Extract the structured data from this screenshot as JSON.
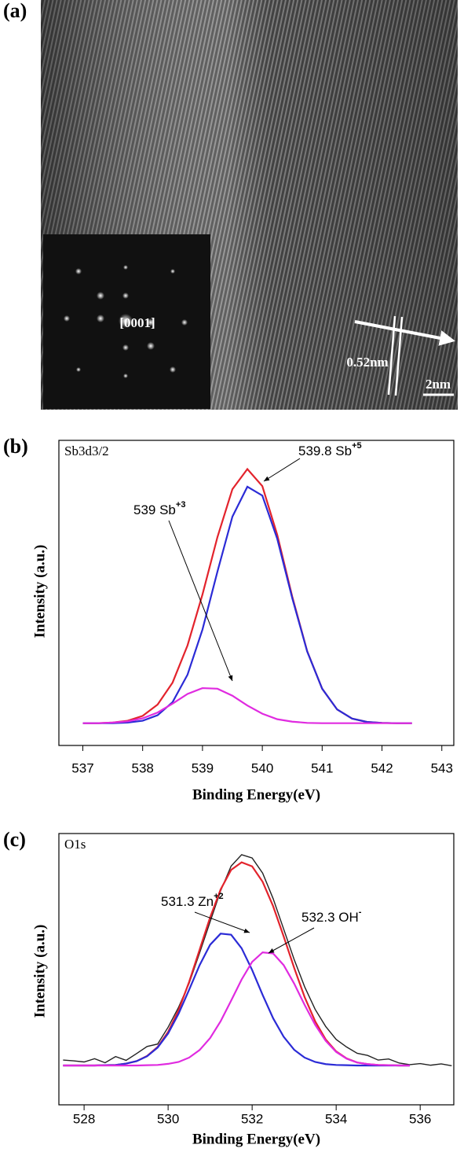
{
  "image_panel": {
    "panel_label": "(a)",
    "inset_label": "[0001]",
    "spacing_label": "0.52nm",
    "scale_bar_label": "2nm"
  },
  "chart_data": [
    {
      "type": "line",
      "panel_label": "(b)",
      "subtitle": "Sb3d3/2",
      "xlabel": "Binding Energy(eV)",
      "ylabel": "Intensity (a.u.)",
      "xlim": [
        536.6,
        543.2
      ],
      "xticks": [
        537,
        538,
        539,
        540,
        541,
        542,
        543
      ],
      "ylim": [
        0,
        100
      ],
      "x": [
        537,
        537.25,
        537.5,
        537.75,
        538,
        538.25,
        538.5,
        538.75,
        539,
        539.25,
        539.5,
        539.75,
        540,
        540.25,
        540.5,
        540.75,
        541,
        541.25,
        541.5,
        541.75,
        542,
        542.25,
        542.5
      ],
      "series": [
        {
          "color": "#e3232c",
          "values": [
            7.3,
            7.3,
            7.5,
            8.1,
            9.7,
            13.4,
            20.6,
            32.8,
            49.5,
            68.3,
            84.0,
            90.6,
            85.0,
            69.0,
            48.8,
            30.9,
            18.6,
            11.8,
            8.8,
            7.7,
            7.4,
            7.3,
            7.3
          ]
        },
        {
          "color": "#2b2bd6",
          "values": [
            7.3,
            7.3,
            7.3,
            7.5,
            8.1,
            9.9,
            14.2,
            23.2,
            38.0,
            57.0,
            75.0,
            84.8,
            81.9,
            67.7,
            48.3,
            30.8,
            18.6,
            11.8,
            8.8,
            7.7,
            7.4,
            7.3,
            7.3
          ]
        },
        {
          "color": "#e02be0",
          "values": [
            7.3,
            7.3,
            7.5,
            7.9,
            8.9,
            10.8,
            13.7,
            16.9,
            18.8,
            18.6,
            16.3,
            13.1,
            10.4,
            8.6,
            7.8,
            7.4,
            7.3,
            7.3,
            7.3,
            7.3,
            7.3,
            7.3,
            7.3
          ]
        }
      ],
      "annotations": [
        {
          "text": "539.8 Sb",
          "sup": "+5"
        },
        {
          "text": "539 Sb",
          "sup": "+3"
        }
      ]
    },
    {
      "type": "line",
      "panel_label": "(c)",
      "subtitle": "O1s",
      "xlabel": "Binding Energy(eV)",
      "ylabel": "Intensity (a.u.)",
      "xlim": [
        527.4,
        536.8
      ],
      "xticks": [
        528,
        530,
        532,
        534,
        536
      ],
      "ylim": [
        0,
        100
      ],
      "x": [
        527.5,
        527.75,
        528,
        528.25,
        528.5,
        528.75,
        529,
        529.25,
        529.5,
        529.75,
        530,
        530.25,
        530.5,
        530.75,
        531,
        531.25,
        531.5,
        531.75,
        532,
        532.25,
        532.5,
        532.75,
        533,
        533.25,
        533.5,
        533.75,
        534,
        534.25,
        534.5,
        534.75,
        535,
        535.25,
        535.5,
        535.75,
        536,
        536.25,
        536.5,
        536.75
      ],
      "series": [
        {
          "color": "#222222",
          "values": [
            16.5,
            16.2,
            15.8,
            17.0,
            15.5,
            17.8,
            16.4,
            18.9,
            21.5,
            22.4,
            28.6,
            36.0,
            44.8,
            56.0,
            67.5,
            78.9,
            88.0,
            92.2,
            91.0,
            85.4,
            76.0,
            64.8,
            53.6,
            43.5,
            35.2,
            28.9,
            24.1,
            21.3,
            19.0,
            18.2,
            16.5,
            16.9,
            15.4,
            14.8,
            15.2,
            14.6,
            15.1,
            14.4
          ]
        },
        {
          "color": "#e3232c",
          "values": [
            14.5,
            14.5,
            14.5,
            14.5,
            14.6,
            14.7,
            15.2,
            16.1,
            18.0,
            21.3,
            26.9,
            34.9,
            45.3,
            57.2,
            69.1,
            79.4,
            86.6,
            89.4,
            87.9,
            82.2,
            73.2,
            62.1,
            50.5,
            39.7,
            30.8,
            24.1,
            19.7,
            17.1,
            15.6,
            15.0,
            14.7,
            14.6,
            14.5,
            14.5,
            null,
            null,
            null,
            null
          ]
        },
        {
          "color": "#2b2bd6",
          "values": [
            14.5,
            14.5,
            14.5,
            14.5,
            14.6,
            14.7,
            15.2,
            16.1,
            17.9,
            21.1,
            26.3,
            33.6,
            42.4,
            51.5,
            59.0,
            63.1,
            62.7,
            57.7,
            49.7,
            40.5,
            31.9,
            25.1,
            20.3,
            17.4,
            15.8,
            15.0,
            14.7,
            14.6,
            14.5,
            14.5,
            14.5,
            14.5,
            14.5,
            14.5,
            null,
            null,
            null,
            null
          ]
        },
        {
          "color": "#e02be0",
          "values": [
            14.5,
            14.5,
            14.5,
            14.5,
            14.5,
            14.5,
            14.5,
            14.5,
            14.6,
            14.7,
            15.1,
            15.8,
            17.4,
            20.2,
            24.6,
            30.8,
            38.4,
            46.2,
            52.7,
            56.2,
            55.8,
            51.5,
            44.7,
            36.8,
            29.5,
            23.6,
            19.5,
            17.0,
            15.6,
            15.0,
            14.7,
            14.6,
            14.5,
            14.5,
            null,
            null,
            null,
            null
          ]
        }
      ],
      "annotations": [
        {
          "text": "531.3 Zn",
          "sup": "+2"
        },
        {
          "text": "532.3 OH",
          "sup": "-"
        }
      ]
    }
  ]
}
